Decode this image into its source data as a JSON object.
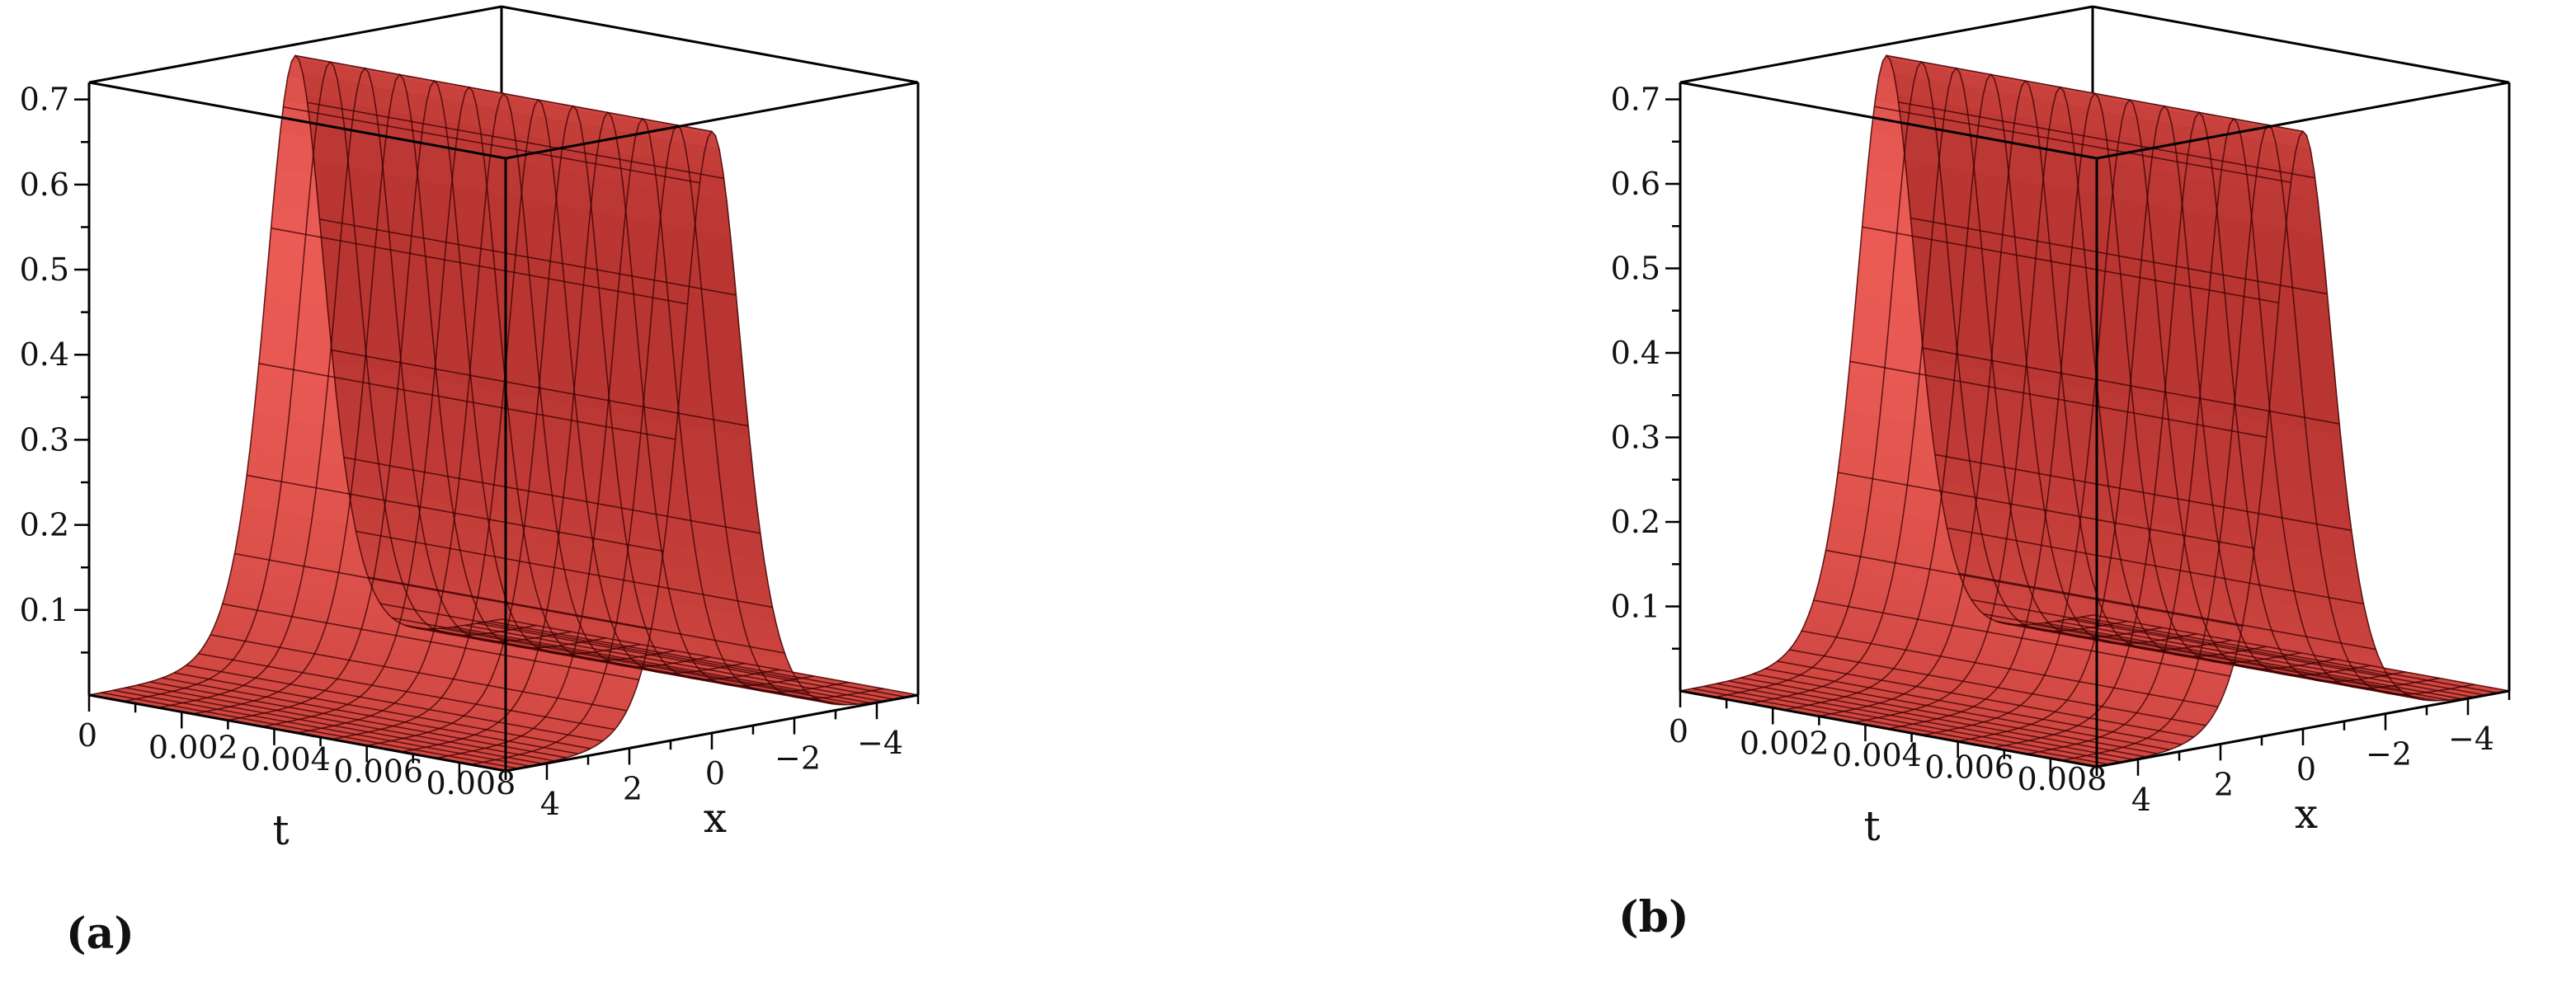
{
  "colors": {
    "surface_light": "#ff6b63",
    "surface_dark": "#7d0808",
    "mesh": "#3a0000",
    "box": "#000000"
  },
  "chart_data": [
    {
      "type": "surface3d",
      "panel_label": "(a)",
      "xlabel": "t",
      "ylabel": "x",
      "zlabel": "",
      "t_range": [
        0,
        0.009
      ],
      "x_range": [
        -5,
        5
      ],
      "zlim": [
        0,
        0.72
      ],
      "t_ticks": [
        "0",
        "0.002",
        "0.004",
        "0.006",
        "0.008"
      ],
      "x_ticks": [
        "4",
        "2",
        "0",
        "−2",
        "−4"
      ],
      "z_ticks": [
        "0.1",
        "0.2",
        "0.3",
        "0.4",
        "0.5",
        "0.6",
        "0.7"
      ],
      "peak_value": 0.707,
      "peak_x": 0,
      "profile": "0.707*sech(x)^2 (constant along t)"
    },
    {
      "type": "surface3d",
      "panel_label": "(b)",
      "xlabel": "t",
      "ylabel": "x",
      "zlabel": "",
      "t_range": [
        0,
        0.009
      ],
      "x_range": [
        -5,
        5
      ],
      "zlim": [
        0,
        0.72
      ],
      "t_ticks": [
        "0",
        "0.002",
        "0.004",
        "0.006",
        "0.008"
      ],
      "x_ticks": [
        "4",
        "2",
        "0",
        "−2",
        "−4"
      ],
      "z_ticks": [
        "0.1",
        "0.2",
        "0.3",
        "0.4",
        "0.5",
        "0.6",
        "0.7"
      ],
      "peak_value": 0.707,
      "peak_x": 0,
      "profile": "0.707*sech(x)^2 (constant along t)"
    }
  ]
}
